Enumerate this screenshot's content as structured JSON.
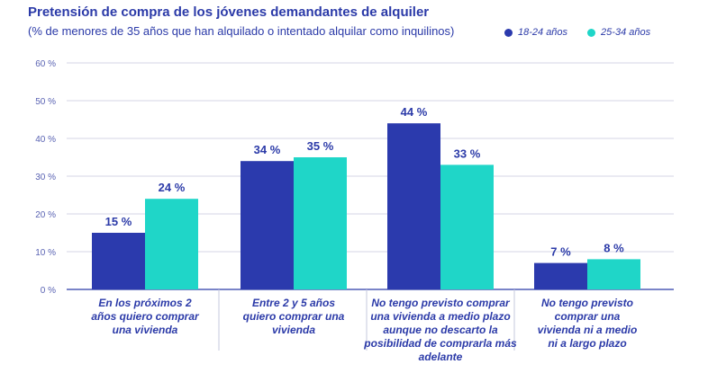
{
  "chart_data": {
    "type": "bar",
    "title": "Pretensión de compra de los jóvenes demandantes de alquiler",
    "subtitle": "(% de menores de 35 años que han alquilado o intentado alquilar como inquilinos)",
    "categories": [
      "En los próximos 2 años quiero comprar una vivienda",
      "Entre 2 y 5 años quiero comprar una vivienda",
      "No tengo previsto comprar una vivienda a medio plazo aunque no descarto la posibilidad de comprarla más adelante",
      "No tengo previsto comprar una vivienda ni a medio ni a largo plazo"
    ],
    "series": [
      {
        "name": "18-24 años",
        "values": [
          15,
          34,
          44,
          7
        ],
        "color": "#2b3aad"
      },
      {
        "name": "25-34 años",
        "values": [
          24,
          35,
          33,
          8
        ],
        "color": "#1fd6c8"
      }
    ],
    "value_suffix": " %",
    "ylim": [
      0,
      60
    ],
    "yticks": [
      0,
      10,
      20,
      30,
      40,
      50,
      60
    ],
    "ytick_labels": [
      "0 %",
      "10 %",
      "20 %",
      "30 %",
      "40 %",
      "50 %",
      "60 %"
    ],
    "grid": true,
    "legend_position": "top-right"
  }
}
